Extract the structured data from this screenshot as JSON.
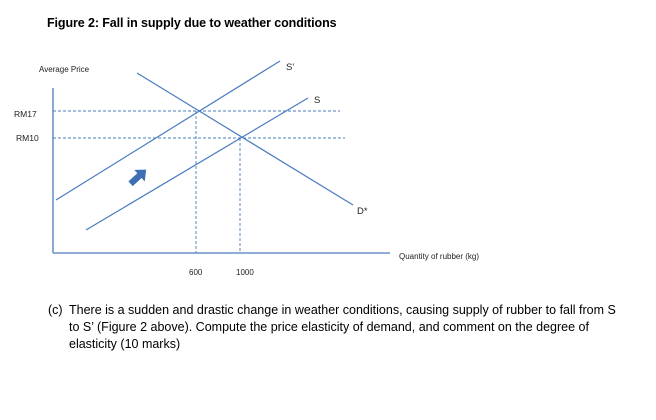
{
  "figure": {
    "title": "Figure 2: Fall in supply due to weather conditions",
    "y_axis_label": "Average Price",
    "x_axis_label": "Quantity of rubber (kg)",
    "price_ticks": [
      "RM17",
      "RM10"
    ],
    "quantity_ticks": [
      "600",
      "1000"
    ],
    "curves": {
      "supply_new": "S'",
      "supply_old": "S",
      "demand": "D*"
    },
    "colors": {
      "curves": "#4a7cc0",
      "axes": "#4a7cc0",
      "dashed": "#4a7cc0",
      "arrow": "#3d6fb5"
    },
    "arrow_icon": "up-right-arrow-icon"
  },
  "question": {
    "marker": "(c)",
    "text": "There is a sudden and drastic change in weather conditions, causing supply of rubber to fall from S to S’ (Figure 2 above). Compute the price elasticity of demand, and comment on the degree of elasticity (10 marks)"
  }
}
